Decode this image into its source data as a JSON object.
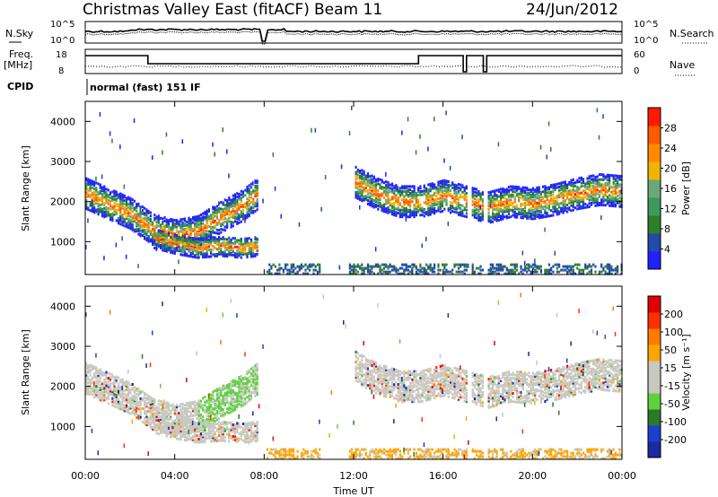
{
  "header": {
    "title": "Christmas Valley East (fitACF)",
    "beam": "Beam 11",
    "date": "24/Jun/2012"
  },
  "status_panels": {
    "nsky_label": "N.Sky",
    "nsky_ticks": [
      "10^5",
      "10^0"
    ],
    "nsearch_label": "N.Search",
    "nsearch_ticks": [
      "10^5",
      "10^0"
    ],
    "freq_label": "Freq.",
    "freq_unit": "[MHz]",
    "freq_ticks": [
      "18",
      "8"
    ],
    "nave_label": "Nave",
    "nave_ticks": [
      "60",
      "0"
    ],
    "cpid_label": "CPID",
    "cpid_value": "normal (fast) 151 IF"
  },
  "colors": {
    "power_scale": [
      "#1f22ff",
      "#224aa8",
      "#2f7f2a",
      "#3d9a5c",
      "#6aa87a",
      "#f0b400",
      "#ff8a00",
      "#ff5a00",
      "#ff1a00"
    ],
    "velocity_scale": [
      "#1a2aa0",
      "#1a3fd0",
      "#2a7a2a",
      "#5fd040",
      "#c8c8c0",
      "#c8c8c0",
      "#ffa500",
      "#ff7a00",
      "#ff3000",
      "#e00000"
    ]
  },
  "chart_data": [
    {
      "type": "heatmap",
      "panel": "power",
      "ylabel": "Slant Range [km]",
      "yticks": [
        "4000",
        "3000",
        "2000",
        "1000"
      ],
      "ylim": [
        180,
        4500
      ],
      "xlim": [
        "00:00",
        "24:00"
      ],
      "colorbar_label": "Power [dB]",
      "colorbar_ticks": [
        "28",
        "24",
        "20",
        "16",
        "12",
        "8",
        "4"
      ],
      "bands": [
        {
          "name": "main-echo",
          "x": [
            0,
            1,
            2,
            3,
            4,
            5,
            6,
            7,
            7.7
          ],
          "y": [
            2200,
            1950,
            1700,
            1300,
            1150,
            1250,
            1600,
            1900,
            2200
          ]
        },
        {
          "name": "lower-echo",
          "x": [
            3,
            4,
            5,
            6,
            7,
            7.7
          ],
          "y": [
            1100,
            950,
            850,
            900,
            850,
            900
          ]
        },
        {
          "name": "afternoon-echo",
          "x": [
            12,
            13,
            14,
            15,
            16,
            17,
            18,
            19,
            20,
            21,
            22,
            23,
            24
          ],
          "y": [
            2500,
            2200,
            2000,
            2000,
            2150,
            2000,
            1850,
            2000,
            1950,
            2050,
            2200,
            2300,
            2250
          ]
        }
      ]
    },
    {
      "type": "heatmap",
      "panel": "velocity",
      "ylabel": "Slant Range [km]",
      "yticks": [
        "4000",
        "3000",
        "2000",
        "1000"
      ],
      "ylim": [
        180,
        4500
      ],
      "xlim": [
        "00:00",
        "24:00"
      ],
      "xlabel": "Time UT",
      "xticks": [
        "00:00",
        "04:00",
        "08:00",
        "12:00",
        "16:00",
        "20:00",
        "00:00"
      ],
      "colorbar_label": "Velocity [m s⁻¹]",
      "colorbar_ticks": [
        "200",
        "100",
        "50",
        "15",
        "-15",
        "-50",
        "-100",
        "-200"
      ]
    }
  ]
}
